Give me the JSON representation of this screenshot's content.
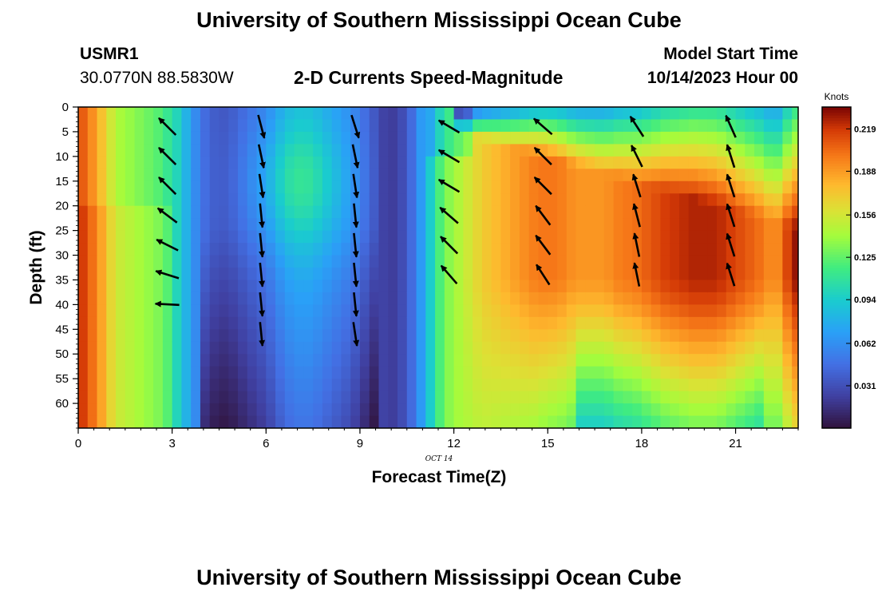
{
  "header": {
    "title": "University of Southern Mississippi Ocean Cube",
    "station_id": "USMR1",
    "station_coords": "30.0770N  88.5830W",
    "subtitle": "2-D Currents Speed-Magnitude",
    "model_start_label": "Model Start Time",
    "model_start_value": "10/14/2023 Hour 00"
  },
  "footer": {
    "title": "University of Southern Mississippi Ocean Cube"
  },
  "chart_data": {
    "type": "heatmap",
    "title": "2-D Currents Speed-Magnitude",
    "xlabel": "Forecast Time(Z)",
    "ylabel": "Depth (ft)",
    "x_date_label": "OCT 14",
    "xlim": [
      0,
      23
    ],
    "ylim": [
      65,
      0
    ],
    "y_inverted": true,
    "x_ticks": [
      0,
      3,
      6,
      9,
      12,
      15,
      18,
      21
    ],
    "y_ticks": [
      0,
      5,
      10,
      15,
      20,
      25,
      30,
      35,
      40,
      45,
      50,
      55,
      60
    ],
    "colorbar": {
      "unit": "Knots",
      "min": 0.0,
      "max": 0.235,
      "ticks": [
        0.031,
        0.062,
        0.094,
        0.125,
        0.156,
        0.188,
        0.219
      ],
      "colormap": "turbo"
    },
    "speed_field": {
      "x": [
        0,
        0.3,
        0.6,
        0.9,
        1.2,
        1.5,
        1.8,
        2.1,
        2.4,
        2.7,
        3.0,
        3.3,
        3.6,
        3.9,
        4.2,
        4.5,
        4.8,
        5.1,
        5.4,
        5.7,
        6.0,
        6.3,
        6.6,
        6.9,
        7.2,
        7.5,
        7.8,
        8.1,
        8.4,
        8.7,
        9.0,
        9.3,
        9.6,
        9.9,
        10.2,
        10.5,
        10.8,
        11.1,
        11.4,
        11.7,
        12.0,
        12.3,
        12.6,
        12.9,
        13.2,
        13.5,
        13.8,
        14.1,
        14.4,
        14.7,
        15.0,
        15.3,
        15.6,
        15.9,
        16.2,
        16.5,
        16.8,
        17.1,
        17.4,
        17.7,
        18.0,
        18.3,
        18.6,
        18.9,
        19.2,
        19.5,
        19.8,
        20.1,
        20.4,
        20.7,
        21.0,
        21.3,
        21.6,
        21.9,
        22.2,
        22.5,
        22.8
      ],
      "depths": [
        0,
        5,
        10,
        15,
        20,
        25,
        30,
        35,
        40,
        45,
        50,
        55,
        60,
        65
      ],
      "description_values": "speed in knots at each (x, depth)"
    },
    "vectors": {
      "times": [
        3,
        6,
        9,
        12,
        15,
        18,
        21
      ],
      "depths": [
        2,
        8,
        14,
        20,
        26,
        32,
        38,
        44
      ],
      "u": [
        [
          -0.7,
          -0.7,
          -0.7,
          -0.8,
          -0.9,
          -0.95,
          -1.0,
          null
        ],
        [
          0.25,
          0.2,
          0.15,
          0.1,
          0.1,
          0.1,
          0.1,
          0.1
        ],
        [
          0.3,
          0.2,
          0.15,
          0.1,
          0.1,
          0.1,
          0.1,
          0.15
        ],
        [
          -0.85,
          -0.85,
          -0.85,
          -0.75,
          -0.7,
          -0.65,
          null,
          null
        ],
        [
          -0.75,
          -0.7,
          -0.7,
          -0.6,
          -0.6,
          -0.55,
          null,
          null
        ],
        [
          -0.55,
          -0.45,
          -0.3,
          -0.25,
          -0.2,
          -0.2,
          null,
          null
        ],
        [
          -0.4,
          -0.3,
          -0.3,
          -0.3,
          -0.3,
          -0.3,
          null,
          null
        ]
      ],
      "v": [
        [
          0.7,
          0.7,
          0.7,
          0.6,
          0.45,
          0.3,
          0.05,
          null
        ],
        [
          -0.95,
          -0.95,
          -0.98,
          -0.99,
          -0.99,
          -0.99,
          -0.99,
          -0.99
        ],
        [
          -0.95,
          -0.97,
          -0.98,
          -0.99,
          -0.99,
          -0.99,
          -0.99,
          -0.98
        ],
        [
          0.5,
          0.5,
          0.5,
          0.65,
          0.7,
          0.75,
          null,
          null
        ],
        [
          0.65,
          0.7,
          0.7,
          0.8,
          0.8,
          0.85,
          null,
          null
        ],
        [
          0.85,
          0.9,
          0.95,
          0.97,
          0.98,
          0.98,
          null,
          null
        ],
        [
          0.9,
          0.95,
          0.95,
          0.95,
          0.95,
          0.95,
          null,
          null
        ]
      ]
    }
  }
}
